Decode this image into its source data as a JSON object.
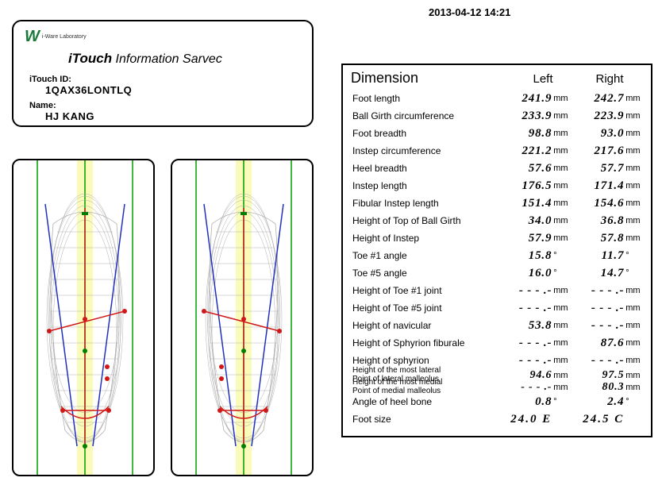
{
  "timestamp": "2013-04-12 14:21",
  "info": {
    "logo_text": "i-Ware\nLaboratory",
    "service_title_strong": "iTouch",
    "service_title_rest": " Information  Sarvec",
    "id_label": "iTouch ID:",
    "id_value": "1QAX36LONTLQ",
    "name_label": "Name:",
    "name_value": "HJ KANG"
  },
  "dim": {
    "title": "Dimension",
    "left_h": "Left",
    "right_h": "Right",
    "rows": [
      {
        "label": "Foot length",
        "l": "241.9",
        "lu": "mm",
        "r": "242.7",
        "ru": "mm"
      },
      {
        "label": "Ball Girth circumference",
        "l": "233.9",
        "lu": "mm",
        "r": "223.9",
        "ru": "mm"
      },
      {
        "label": "Foot breadth",
        "l": "98.8",
        "lu": "mm",
        "r": "93.0",
        "ru": "mm"
      },
      {
        "label": "Instep circumference",
        "l": "221.2",
        "lu": "mm",
        "r": "217.6",
        "ru": "mm"
      },
      {
        "label": "Heel breadth",
        "l": "57.6",
        "lu": "mm",
        "r": "57.7",
        "ru": "mm"
      },
      {
        "label": "Instep length",
        "l": "176.5",
        "lu": "mm",
        "r": "171.4",
        "ru": "mm"
      },
      {
        "label": "Fibular Instep length",
        "l": "151.4",
        "lu": "mm",
        "r": "154.6",
        "ru": "mm"
      },
      {
        "label": "Height of Top of Ball Girth",
        "l": "34.0",
        "lu": "mm",
        "r": "36.8",
        "ru": "mm"
      },
      {
        "label": "Height of Instep",
        "l": "57.9",
        "lu": "mm",
        "r": "57.8",
        "ru": "mm"
      },
      {
        "label": "Toe #1 angle",
        "l": "15.8",
        "lu": "°",
        "r": "11.7",
        "ru": "°"
      },
      {
        "label": "Toe #5 angle",
        "l": "16.0",
        "lu": "°",
        "r": "14.7",
        "ru": "°"
      },
      {
        "label": "Height of Toe #1 joint",
        "l": "- - - .-",
        "lu": "mm",
        "r": "- - - .-",
        "ru": "mm"
      },
      {
        "label": "Height of Toe #5 joint",
        "l": "- - - .-",
        "lu": "mm",
        "r": "- - - .-",
        "ru": "mm"
      },
      {
        "label": "Height of navicular",
        "l": "53.8",
        "lu": "mm",
        "r": "- - - .-",
        "ru": "mm"
      },
      {
        "label": "Height of Sphyrion fiburale",
        "l": "- - - .-",
        "lu": "mm",
        "r": "87.6",
        "ru": "mm"
      },
      {
        "label": "Height of sphyrion",
        "l": "- - - .-",
        "lu": "mm",
        "r": "- - - .-",
        "ru": "mm"
      },
      {
        "label": "Height of the most lateral\n  Point of lateral malleolus",
        "l": "94.6",
        "lu": "mm",
        "r": "97.5",
        "ru": "mm",
        "small": true
      },
      {
        "label": "Height of the most medial\n  Point of medial malleolus",
        "l": "- - - .-",
        "lu": "mm",
        "r": "80.3",
        "ru": "mm",
        "small": true
      },
      {
        "label": "Angle of heel bone",
        "l": "0.8",
        "lu": "°",
        "r": "2.4",
        "ru": "°"
      },
      {
        "label": "Foot size",
        "l": "24.0  E",
        "lu": "",
        "r": "24.5  C",
        "ru": "",
        "footsize": true
      }
    ]
  },
  "colors": {
    "border": "#000000",
    "guide_green": "#00a000",
    "guide_yellow": "#f7f78a",
    "mesh": "#b0b0b0",
    "measure_red": "#d01818",
    "measure_blue": "#2030c0",
    "dot_green": "#008000"
  }
}
